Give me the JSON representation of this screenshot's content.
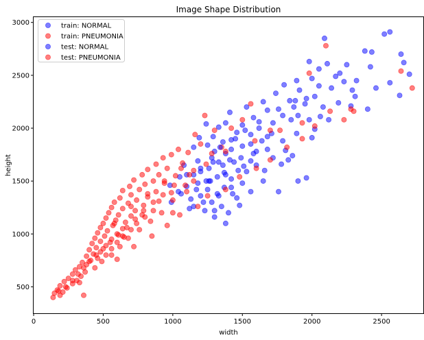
{
  "chart_data": {
    "type": "scatter",
    "title": "Image Shape Distribution",
    "xlabel": "width",
    "ylabel": "height",
    "xlim": [
      0,
      2800
    ],
    "ylim": [
      250,
      3050
    ],
    "xticks": [
      0,
      500,
      1000,
      1500,
      2000,
      2500
    ],
    "yticks": [
      500,
      1000,
      1500,
      2000,
      2500,
      3000
    ],
    "grid": false,
    "legend_position": "top-left",
    "marker_opacity": 0.5,
    "series": [
      {
        "name": "train: NORMAL",
        "color": "#0000ff",
        "points": [
          [
            2560,
            2910
          ],
          [
            2090,
            2850
          ],
          [
            2520,
            2890
          ],
          [
            1980,
            2630
          ],
          [
            2640,
            2700
          ],
          [
            2380,
            2730
          ],
          [
            2430,
            2720
          ],
          [
            2700,
            2510
          ],
          [
            2660,
            2620
          ],
          [
            2250,
            2600
          ],
          [
            2110,
            2610
          ],
          [
            2050,
            2560
          ],
          [
            2560,
            2430
          ],
          [
            2320,
            2450
          ],
          [
            2170,
            2490
          ],
          [
            2000,
            2470
          ],
          [
            1890,
            2450
          ],
          [
            2230,
            2440
          ],
          [
            2460,
            2380
          ],
          [
            1800,
            2410
          ],
          [
            1910,
            2360
          ],
          [
            2020,
            2300
          ],
          [
            2140,
            2380
          ],
          [
            2290,
            2360
          ],
          [
            2400,
            2180
          ],
          [
            1960,
            2280
          ],
          [
            1740,
            2330
          ],
          [
            2080,
            2200
          ],
          [
            2190,
            2240
          ],
          [
            2310,
            2300
          ],
          [
            2630,
            2310
          ],
          [
            1840,
            2260
          ],
          [
            1870,
            2200
          ],
          [
            1650,
            2250
          ],
          [
            1790,
            2120
          ],
          [
            1950,
            2230
          ],
          [
            2060,
            2110
          ],
          [
            1530,
            2200
          ],
          [
            1680,
            2170
          ],
          [
            1580,
            2100
          ],
          [
            2280,
            2210
          ],
          [
            2120,
            2080
          ],
          [
            1980,
            2080
          ],
          [
            1720,
            2050
          ],
          [
            1850,
            2080
          ],
          [
            1410,
            2150
          ],
          [
            2020,
            1990
          ],
          [
            1620,
            2000
          ],
          [
            1500,
            2030
          ],
          [
            1380,
            2050
          ],
          [
            1710,
            1950
          ],
          [
            1890,
            1950
          ],
          [
            1560,
            1940
          ],
          [
            1330,
            2010
          ],
          [
            1240,
            2040
          ],
          [
            1460,
            1960
          ],
          [
            1640,
            1880
          ],
          [
            1790,
            1880
          ],
          [
            2000,
            1910
          ],
          [
            1420,
            1890
          ],
          [
            1290,
            1920
          ],
          [
            1560,
            1850
          ],
          [
            1190,
            1910
          ],
          [
            1360,
            1870
          ],
          [
            1680,
            1800
          ],
          [
            1500,
            1830
          ],
          [
            1600,
            1780
          ],
          [
            1810,
            1790
          ],
          [
            1250,
            1840
          ],
          [
            1420,
            1800
          ],
          [
            1380,
            1760
          ],
          [
            1490,
            1720
          ],
          [
            1300,
            1780
          ],
          [
            1150,
            1820
          ],
          [
            1720,
            1720
          ],
          [
            1560,
            1690
          ],
          [
            1830,
            1700
          ],
          [
            1280,
            1720
          ],
          [
            1440,
            1680
          ],
          [
            1360,
            1650
          ],
          [
            1180,
            1690
          ],
          [
            1600,
            1650
          ],
          [
            1260,
            1620
          ],
          [
            1470,
            1600
          ],
          [
            1080,
            1650
          ],
          [
            1370,
            1580
          ],
          [
            1530,
            1590
          ],
          [
            1200,
            1590
          ],
          [
            1320,
            1540
          ],
          [
            1150,
            1560
          ],
          [
            1420,
            1520
          ],
          [
            1270,
            1500
          ],
          [
            1050,
            1540
          ],
          [
            1180,
            1480
          ],
          [
            1500,
            1480
          ],
          [
            1370,
            1440
          ],
          [
            1250,
            1420
          ],
          [
            1100,
            1450
          ],
          [
            1320,
            1380
          ],
          [
            980,
            1460
          ],
          [
            1200,
            1360
          ],
          [
            1430,
            1380
          ],
          [
            1130,
            1330
          ],
          [
            1060,
            1380
          ],
          [
            1280,
            1300
          ],
          [
            1350,
            1260
          ],
          [
            1230,
            1220
          ],
          [
            1150,
            1260
          ],
          [
            1400,
            1200
          ],
          [
            1300,
            1160
          ],
          [
            990,
            1300
          ],
          [
            1480,
            1270
          ],
          [
            1380,
            1100
          ],
          [
            1240,
            1500
          ],
          [
            1650,
            1500
          ],
          [
            1330,
            1680
          ],
          [
            1760,
            1400
          ],
          [
            1960,
            1530
          ],
          [
            1900,
            1500
          ],
          [
            1860,
            1740
          ]
        ]
      },
      {
        "name": "train: PNEUMONIA",
        "color": "#ff0000",
        "points": [
          [
            2100,
            2780
          ],
          [
            2720,
            2380
          ],
          [
            2640,
            2540
          ],
          [
            2280,
            2180
          ],
          [
            2230,
            2080
          ],
          [
            1980,
            2520
          ],
          [
            2300,
            2160
          ],
          [
            1560,
            2230
          ],
          [
            1700,
            1980
          ],
          [
            1500,
            2080
          ],
          [
            1230,
            2120
          ],
          [
            1300,
            1980
          ],
          [
            1420,
            2000
          ],
          [
            1160,
            1940
          ],
          [
            1200,
            1850
          ],
          [
            1350,
            1820
          ],
          [
            1110,
            1770
          ],
          [
            1040,
            1800
          ],
          [
            990,
            1750
          ],
          [
            1280,
            1760
          ],
          [
            930,
            1720
          ],
          [
            1070,
            1670
          ],
          [
            880,
            1660
          ],
          [
            960,
            1620
          ],
          [
            1150,
            1600
          ],
          [
            820,
            1610
          ],
          [
            900,
            1560
          ],
          [
            1020,
            1550
          ],
          [
            780,
            1560
          ],
          [
            860,
            1500
          ],
          [
            940,
            1480
          ],
          [
            720,
            1510
          ],
          [
            800,
            1470
          ],
          [
            1090,
            1460
          ],
          [
            690,
            1450
          ],
          [
            760,
            1420
          ],
          [
            880,
            1400
          ],
          [
            640,
            1410
          ],
          [
            990,
            1390
          ],
          [
            700,
            1370
          ],
          [
            820,
            1350
          ],
          [
            620,
            1340
          ],
          [
            740,
            1320
          ],
          [
            900,
            1310
          ],
          [
            580,
            1300
          ],
          [
            680,
            1290
          ],
          [
            790,
            1270
          ],
          [
            560,
            1250
          ],
          [
            640,
            1240
          ],
          [
            730,
            1220
          ],
          [
            860,
            1220
          ],
          [
            540,
            1200
          ],
          [
            610,
            1180
          ],
          [
            700,
            1170
          ],
          [
            520,
            1150
          ],
          [
            800,
            1160
          ],
          [
            590,
            1130
          ],
          [
            660,
            1110
          ],
          [
            500,
            1100
          ],
          [
            740,
            1100
          ],
          [
            570,
            1080
          ],
          [
            480,
            1060
          ],
          [
            640,
            1050
          ],
          [
            530,
            1030
          ],
          [
            700,
            1040
          ],
          [
            460,
            1010
          ],
          [
            600,
            1000
          ],
          [
            510,
            980
          ],
          [
            440,
            960
          ],
          [
            650,
            970
          ],
          [
            560,
            950
          ],
          [
            480,
            930
          ],
          [
            420,
            910
          ],
          [
            600,
            920
          ],
          [
            520,
            890
          ],
          [
            450,
            870
          ],
          [
            400,
            850
          ],
          [
            560,
            860
          ],
          [
            480,
            830
          ],
          [
            430,
            810
          ],
          [
            380,
            790
          ],
          [
            520,
            800
          ],
          [
            460,
            770
          ],
          [
            410,
            750
          ],
          [
            350,
            730
          ],
          [
            490,
            740
          ],
          [
            380,
            710
          ],
          [
            330,
            690
          ],
          [
            440,
            680
          ],
          [
            300,
            660
          ],
          [
            370,
            640
          ],
          [
            280,
            620
          ],
          [
            340,
            600
          ],
          [
            250,
            580
          ],
          [
            310,
            560
          ],
          [
            220,
            550
          ],
          [
            280,
            530
          ],
          [
            190,
            510
          ],
          [
            240,
            490
          ],
          [
            170,
            470
          ],
          [
            210,
            450
          ],
          [
            150,
            440
          ],
          [
            190,
            420
          ],
          [
            140,
            400
          ],
          [
            360,
            420
          ],
          [
            330,
            540
          ],
          [
            600,
            760
          ],
          [
            720,
            880
          ],
          [
            850,
            980
          ],
          [
            960,
            1080
          ],
          [
            1050,
            1180
          ],
          [
            1180,
            1260
          ],
          [
            1250,
            1360
          ],
          [
            1380,
            1420
          ],
          [
            1480,
            1540
          ],
          [
            1600,
            1620
          ],
          [
            1700,
            1700
          ],
          [
            1820,
            1820
          ],
          [
            1930,
            1900
          ],
          [
            2020,
            2020
          ],
          [
            920,
            1200
          ],
          [
            1000,
            1320
          ],
          [
            1100,
            1400
          ],
          [
            1150,
            1500
          ],
          [
            760,
            1040
          ],
          [
            680,
            960
          ],
          [
            620,
            880
          ],
          [
            560,
            800
          ],
          [
            840,
            1120
          ],
          [
            780,
            1180
          ]
        ]
      },
      {
        "name": "test: NORMAL",
        "color": "#0000ff",
        "points": [
          [
            2420,
            2580
          ],
          [
            2200,
            2520
          ],
          [
            1880,
            2260
          ],
          [
            2050,
            2400
          ],
          [
            1760,
            2180
          ],
          [
            1620,
            2060
          ],
          [
            1900,
            2120
          ],
          [
            1520,
            1980
          ],
          [
            1680,
            1920
          ],
          [
            1450,
            1900
          ],
          [
            1340,
            1820
          ],
          [
            1580,
            1760
          ],
          [
            1410,
            1700
          ],
          [
            1290,
            1680
          ],
          [
            1510,
            1640
          ],
          [
            1200,
            1620
          ],
          [
            1380,
            1560
          ],
          [
            1100,
            1560
          ],
          [
            1260,
            1500
          ],
          [
            1420,
            1440
          ],
          [
            1170,
            1420
          ],
          [
            1330,
            1360
          ],
          [
            1040,
            1400
          ],
          [
            1220,
            1300
          ],
          [
            1120,
            1240
          ],
          [
            1300,
            1220
          ],
          [
            1460,
            1340
          ],
          [
            1560,
            1400
          ],
          [
            1660,
            1600
          ],
          [
            1780,
            1660
          ]
        ]
      },
      {
        "name": "test: PNEUMONIA",
        "color": "#ff0000",
        "points": [
          [
            2130,
            2160
          ],
          [
            1930,
            2050
          ],
          [
            1770,
            1980
          ],
          [
            1590,
            1880
          ],
          [
            1380,
            1780
          ],
          [
            1240,
            1660
          ],
          [
            1120,
            1560
          ],
          [
            1010,
            1460
          ],
          [
            930,
            1370
          ],
          [
            860,
            1300
          ],
          [
            790,
            1220
          ],
          [
            730,
            1140
          ],
          [
            670,
            1060
          ],
          [
            610,
            990
          ],
          [
            550,
            920
          ],
          [
            500,
            860
          ],
          [
            450,
            800
          ],
          [
            400,
            740
          ],
          [
            360,
            680
          ],
          [
            320,
            620
          ],
          [
            280,
            560
          ],
          [
            230,
            500
          ],
          [
            180,
            460
          ],
          [
            700,
            1260
          ],
          [
            820,
            1380
          ],
          [
            940,
            1500
          ],
          [
            1060,
            1620
          ],
          [
            640,
            980
          ],
          [
            580,
            1100
          ],
          [
            1000,
            1200
          ]
        ]
      }
    ]
  }
}
